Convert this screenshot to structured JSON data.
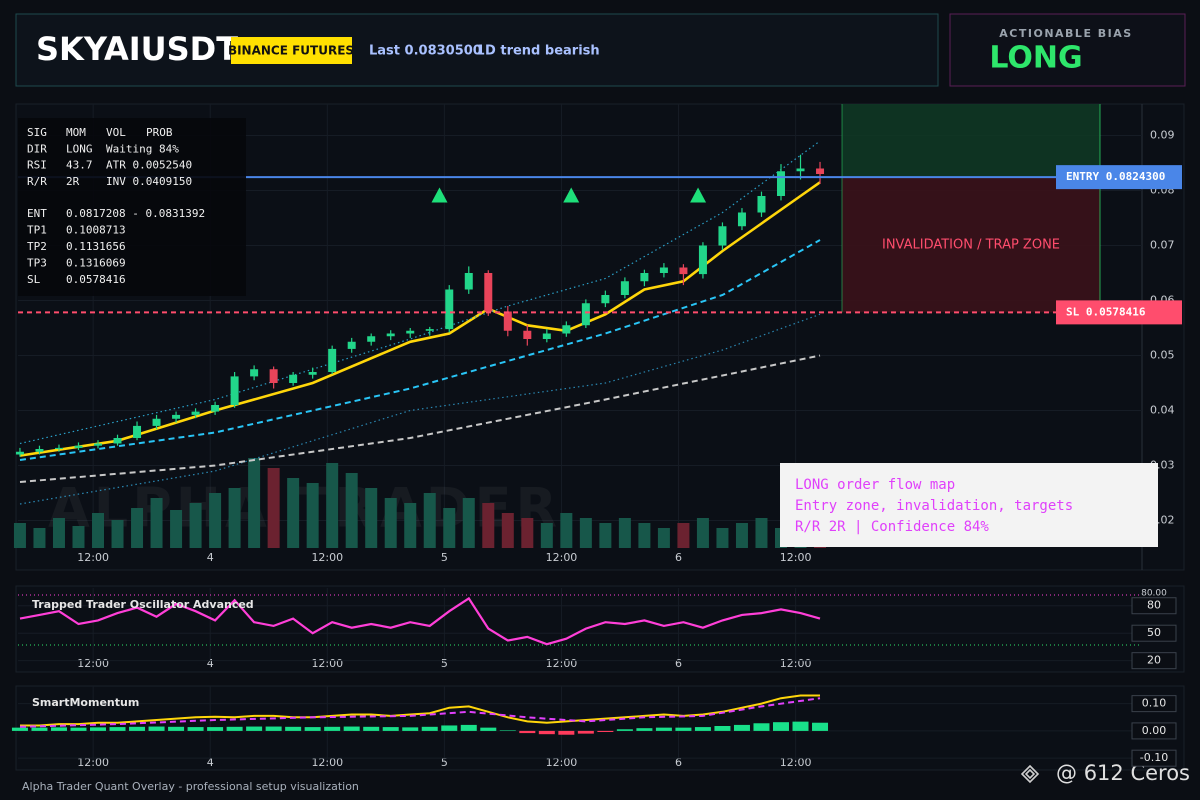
{
  "header": {
    "symbol": "SKYAIUSDT",
    "badge": "BINANCE FUTURES",
    "last": "Last 0.0830500",
    "trend": "1D trend bearish"
  },
  "bias": {
    "label": "ACTIONABLE BIAS",
    "value": "LONG"
  },
  "info_rows": [
    [
      "SIG",
      "MOM",
      "VOL",
      "PROB"
    ],
    [
      "DIR",
      "LONG",
      "Waiting 84%"
    ],
    [
      "RSI",
      "43.7",
      "ATR 0.0052540"
    ],
    [
      "R/R",
      "2R",
      "INV 0.0409150"
    ]
  ],
  "level_rows": [
    [
      "ENT",
      "0.0817208 - 0.0831392"
    ],
    [
      "TP1",
      "0.1008713"
    ],
    [
      "TP2",
      "0.1131656"
    ],
    [
      "TP3",
      "0.1316069"
    ],
    [
      "SL",
      "0.0578416"
    ]
  ],
  "note": [
    "LONG order flow map",
    "Entry zone, invalidation, targets",
    "R/R 2R | Confidence 84%"
  ],
  "footer": "Alpha Trader Quant Overlay - professional setup visualization",
  "watermark": "ALPHA TRADER",
  "credit": "@ 612 Ceros",
  "chart_data": [
    {
      "type": "candlestick",
      "x": [
        0,
        2,
        4,
        6,
        8,
        10,
        12,
        14,
        16,
        18,
        20,
        22,
        24,
        26,
        28,
        30,
        32,
        34,
        36,
        38,
        40,
        42,
        44,
        46,
        48,
        50,
        52,
        54,
        56,
        58,
        60,
        62,
        64,
        66,
        68,
        70,
        72,
        74,
        76,
        78,
        80,
        82
      ],
      "open": [
        0.032,
        0.0325,
        0.033,
        0.0332,
        0.0336,
        0.034,
        0.035,
        0.0372,
        0.0385,
        0.0392,
        0.0398,
        0.041,
        0.0462,
        0.0475,
        0.045,
        0.0465,
        0.047,
        0.0512,
        0.0525,
        0.0535,
        0.054,
        0.0545,
        0.0548,
        0.062,
        0.065,
        0.058,
        0.0545,
        0.053,
        0.054,
        0.0555,
        0.0595,
        0.061,
        0.0635,
        0.065,
        0.066,
        0.0648,
        0.07,
        0.0735,
        0.076,
        0.079,
        0.0835,
        0.084
      ],
      "high": [
        0.0332,
        0.0336,
        0.0338,
        0.0342,
        0.0346,
        0.0356,
        0.038,
        0.0392,
        0.0398,
        0.0404,
        0.0416,
        0.047,
        0.0482,
        0.048,
        0.047,
        0.0478,
        0.0518,
        0.0532,
        0.054,
        0.0546,
        0.055,
        0.0552,
        0.0628,
        0.0662,
        0.0655,
        0.059,
        0.0556,
        0.0548,
        0.0562,
        0.0602,
        0.0618,
        0.0642,
        0.0656,
        0.0668,
        0.0666,
        0.0706,
        0.0742,
        0.0768,
        0.0798,
        0.0848,
        0.0865,
        0.0852
      ],
      "low": [
        0.0316,
        0.032,
        0.0325,
        0.0328,
        0.0331,
        0.0336,
        0.0346,
        0.0366,
        0.0378,
        0.0386,
        0.0392,
        0.0405,
        0.0455,
        0.044,
        0.0445,
        0.0458,
        0.0466,
        0.0505,
        0.0518,
        0.0528,
        0.0532,
        0.0536,
        0.0542,
        0.0612,
        0.0572,
        0.0535,
        0.0518,
        0.0524,
        0.0534,
        0.055,
        0.0588,
        0.0604,
        0.0626,
        0.0642,
        0.0628,
        0.064,
        0.0692,
        0.0728,
        0.0752,
        0.0782,
        0.082,
        0.0812
      ],
      "close": [
        0.0325,
        0.033,
        0.0332,
        0.0336,
        0.034,
        0.035,
        0.0372,
        0.0385,
        0.0392,
        0.0398,
        0.041,
        0.0462,
        0.0475,
        0.045,
        0.0465,
        0.047,
        0.0512,
        0.0525,
        0.0535,
        0.054,
        0.0545,
        0.0548,
        0.062,
        0.065,
        0.058,
        0.0545,
        0.053,
        0.054,
        0.0555,
        0.0595,
        0.061,
        0.0635,
        0.065,
        0.066,
        0.0648,
        0.07,
        0.0735,
        0.076,
        0.079,
        0.0835,
        0.084,
        0.083
      ],
      "volume": [
        25,
        20,
        30,
        22,
        35,
        28,
        40,
        50,
        38,
        45,
        55,
        60,
        90,
        80,
        70,
        65,
        85,
        75,
        60,
        50,
        45,
        55,
        40,
        50,
        45,
        35,
        30,
        25,
        35,
        30,
        25,
        30,
        25,
        20,
        25,
        30,
        20,
        25,
        30,
        20,
        25,
        20
      ],
      "volume_ylim": [
        0,
        100
      ],
      "lines": [
        {
          "color": "#ffd60a",
          "style": "solid",
          "x": [
            0,
            10,
            20,
            30,
            40,
            44,
            48,
            52,
            56,
            60,
            64,
            68,
            72,
            76,
            80,
            82
          ],
          "values": [
            0.0318,
            0.0345,
            0.04,
            0.045,
            0.0525,
            0.054,
            0.0585,
            0.0555,
            0.0545,
            0.0575,
            0.062,
            0.0635,
            0.069,
            0.074,
            0.079,
            0.0815
          ]
        },
        {
          "color": "#29c5f6",
          "style": "dashed",
          "x": [
            0,
            20,
            40,
            60,
            72,
            82
          ],
          "values": [
            0.031,
            0.036,
            0.044,
            0.054,
            0.061,
            0.071
          ]
        },
        {
          "color": "#2aa0c8",
          "style": "dotted",
          "x": [
            0,
            20,
            40,
            50,
            60,
            72,
            82
          ],
          "values": [
            0.034,
            0.042,
            0.053,
            0.059,
            0.064,
            0.076,
            0.089
          ]
        },
        {
          "color": "#2a86b0",
          "style": "dotted",
          "x": [
            0,
            20,
            40,
            60,
            72,
            82
          ],
          "values": [
            0.023,
            0.029,
            0.04,
            0.045,
            0.051,
            0.0575
          ]
        },
        {
          "color": "#c8c8c8",
          "style": "dashed",
          "x": [
            0,
            20,
            40,
            60,
            82
          ],
          "values": [
            0.027,
            0.03,
            0.035,
            0.042,
            0.05
          ]
        }
      ],
      "levels": [
        {
          "label": "ENTRY 0.0824300",
          "value": 0.08243,
          "color": "#4a86e8"
        },
        {
          "label": "SL 0.0578416",
          "value": 0.0578416,
          "color": "#ff4d6d"
        }
      ],
      "signals": {
        "x": [
          43,
          56.5,
          69.5
        ],
        "values": [
          0.0791,
          0.0791,
          0.0791
        ],
        "color": "#1ee07a"
      },
      "zone_label": "INVALIDATION / TRAP ZONE",
      "xlim": [
        -0.2,
        115
      ],
      "xticks": [
        {
          "value": 7.5,
          "label": "12:00"
        },
        {
          "value": 19.5,
          "label": "4"
        },
        {
          "value": 31.5,
          "label": "12:00"
        },
        {
          "value": 43.5,
          "label": "5"
        },
        {
          "value": 55.5,
          "label": "12:00"
        },
        {
          "value": 67.5,
          "label": "6"
        },
        {
          "value": 79.5,
          "label": "12:00"
        }
      ],
      "ylim": [
        0.015,
        0.095
      ],
      "yticks": [
        0.02,
        0.03,
        0.04,
        0.05,
        0.06,
        0.07,
        0.08,
        0.09
      ]
    },
    {
      "type": "line",
      "title": "Trapped Trader Oscillator Advanced",
      "color": "#ff3fd8",
      "x": [
        0,
        2,
        4,
        6,
        8,
        10,
        12,
        14,
        16,
        18,
        20,
        22,
        24,
        26,
        28,
        30,
        32,
        34,
        36,
        38,
        40,
        42,
        44,
        46,
        48,
        50,
        52,
        54,
        56,
        58,
        60,
        62,
        64,
        66,
        68,
        70,
        72,
        74,
        76,
        78,
        80,
        82
      ],
      "values": [
        66,
        70,
        74,
        60,
        64,
        72,
        78,
        68,
        82,
        74,
        64,
        86,
        62,
        58,
        66,
        50,
        62,
        56,
        60,
        56,
        62,
        58,
        74,
        88,
        55,
        42,
        46,
        38,
        44,
        55,
        62,
        60,
        64,
        58,
        62,
        56,
        64,
        70,
        72,
        76,
        72,
        66
      ],
      "level_label": "80.00",
      "xlim": [
        -0.2,
        115
      ],
      "xticks": [
        {
          "value": 7.5,
          "label": "12:00"
        },
        {
          "value": 19.5,
          "label": "4"
        },
        {
          "value": 31.5,
          "label": "12:00"
        },
        {
          "value": 43.5,
          "label": "5"
        },
        {
          "value": 55.5,
          "label": "12:00"
        },
        {
          "value": 67.5,
          "label": "6"
        },
        {
          "value": 79.5,
          "label": "12:00"
        }
      ],
      "ylim": [
        12,
        95
      ],
      "yticks": [
        80,
        50,
        20
      ]
    },
    {
      "type": "bar",
      "title": "SmartMomentum",
      "x": [
        0,
        2,
        4,
        6,
        8,
        10,
        12,
        14,
        16,
        18,
        20,
        22,
        24,
        26,
        28,
        30,
        32,
        34,
        36,
        38,
        40,
        42,
        44,
        46,
        48,
        50,
        52,
        54,
        56,
        58,
        60,
        62,
        64,
        66,
        68,
        70,
        72,
        74,
        76,
        78,
        80,
        82
      ],
      "values": [
        0.012,
        0.012,
        0.013,
        0.012,
        0.013,
        0.014,
        0.015,
        0.016,
        0.015,
        0.014,
        0.014,
        0.015,
        0.016,
        0.016,
        0.015,
        0.014,
        0.015,
        0.016,
        0.015,
        0.014,
        0.013,
        0.015,
        0.02,
        0.022,
        0.012,
        0.002,
        -0.008,
        -0.012,
        -0.014,
        -0.01,
        -0.004,
        0.006,
        0.01,
        0.012,
        0.012,
        0.014,
        0.018,
        0.022,
        0.028,
        0.032,
        0.034,
        0.03
      ],
      "colors": {
        "up": "#19e08a",
        "down": "#ff3b5c"
      },
      "lines": [
        {
          "color": "#ffd60a",
          "style": "solid",
          "x": [
            0,
            2,
            4,
            6,
            8,
            10,
            12,
            14,
            16,
            18,
            20,
            22,
            24,
            26,
            28,
            30,
            32,
            34,
            36,
            38,
            40,
            42,
            44,
            46,
            48,
            50,
            52,
            54,
            56,
            58,
            60,
            62,
            64,
            66,
            68,
            70,
            72,
            74,
            76,
            78,
            80,
            82
          ],
          "values": [
            0.02,
            0.02,
            0.025,
            0.025,
            0.03,
            0.03,
            0.035,
            0.04,
            0.045,
            0.05,
            0.052,
            0.05,
            0.055,
            0.055,
            0.05,
            0.05,
            0.055,
            0.06,
            0.06,
            0.055,
            0.06,
            0.065,
            0.085,
            0.09,
            0.07,
            0.05,
            0.035,
            0.03,
            0.035,
            0.04,
            0.045,
            0.05,
            0.055,
            0.06,
            0.055,
            0.06,
            0.07,
            0.085,
            0.1,
            0.12,
            0.13,
            0.13
          ]
        },
        {
          "color": "#e040fb",
          "style": "dashed",
          "x": [
            0,
            10,
            20,
            30,
            40,
            46,
            52,
            58,
            64,
            70,
            76,
            82
          ],
          "values": [
            0.015,
            0.025,
            0.04,
            0.05,
            0.055,
            0.07,
            0.05,
            0.035,
            0.05,
            0.055,
            0.09,
            0.12
          ]
        }
      ],
      "xlim": [
        -0.2,
        115
      ],
      "xticks": [
        {
          "value": 7.5,
          "label": "12:00"
        },
        {
          "value": 19.5,
          "label": "4"
        },
        {
          "value": 31.5,
          "label": "12:00"
        },
        {
          "value": 43.5,
          "label": "5"
        },
        {
          "value": 55.5,
          "label": "12:00"
        },
        {
          "value": 67.5,
          "label": "6"
        },
        {
          "value": 79.5,
          "label": "12:00"
        }
      ],
      "ylim": [
        -0.125,
        0.15
      ],
      "yticks": [
        {
          "value": 0.1,
          "label": "0.10"
        },
        {
          "value": 0,
          "label": "0.00"
        },
        {
          "value": -0.1,
          "label": "-0.10"
        }
      ]
    }
  ]
}
